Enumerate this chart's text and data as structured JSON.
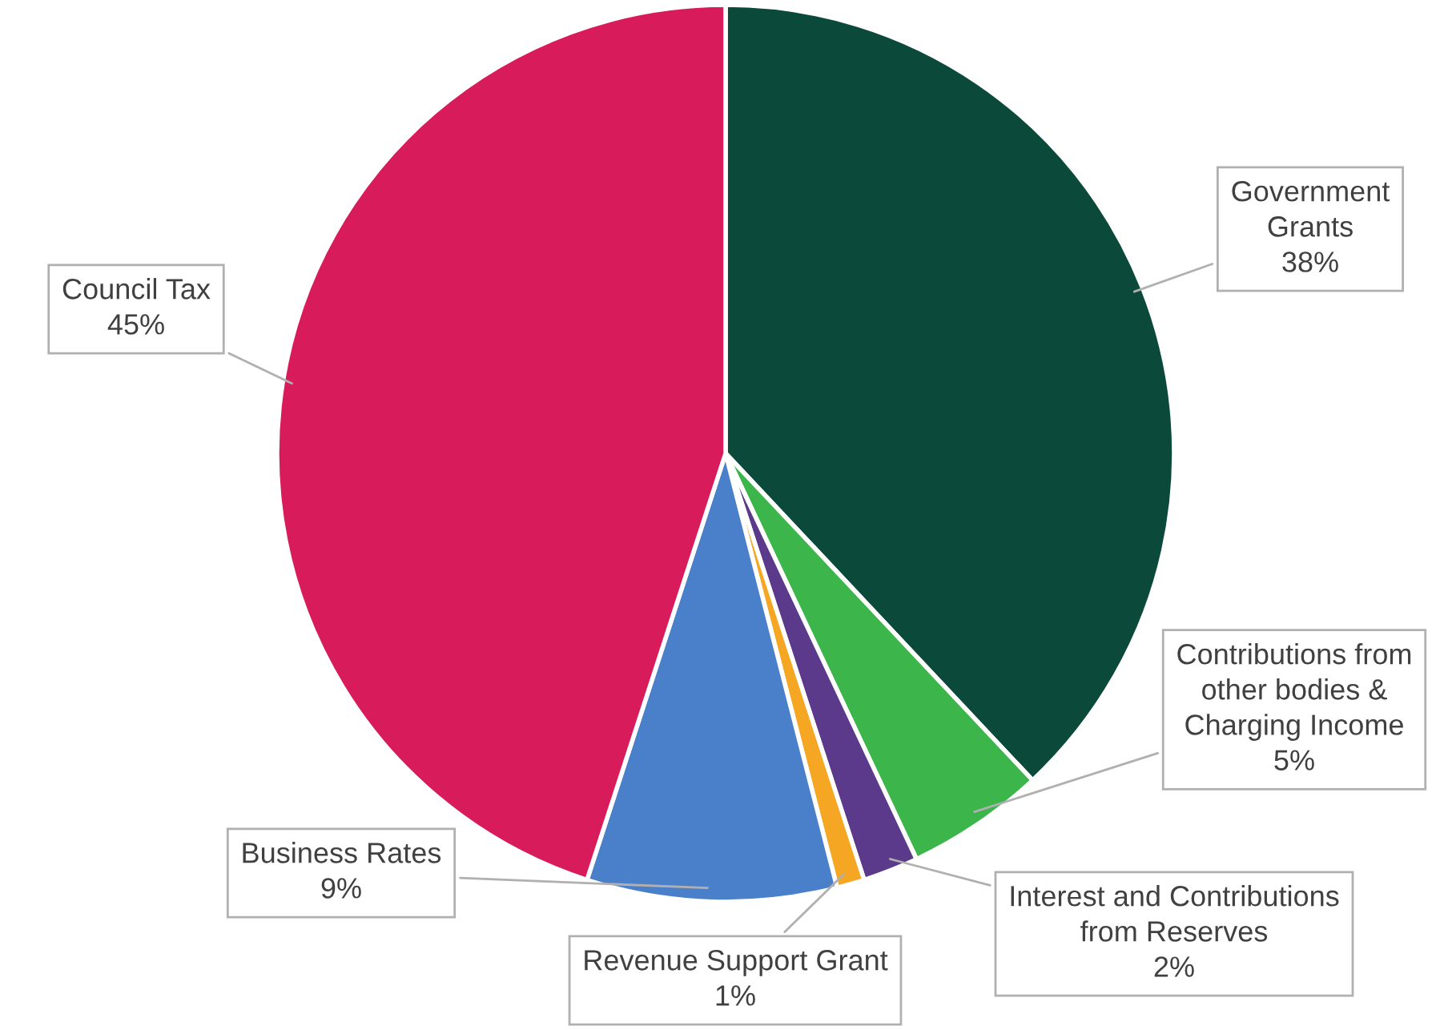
{
  "chart_data": {
    "type": "pie",
    "categories": [
      "Government\nGrants",
      "Contributions from\nother bodies &\nCharging Income",
      "Interest and Contributions\nfrom Reserves",
      "Revenue Support Grant",
      "Business Rates",
      "Council Tax"
    ],
    "values": [
      38,
      5,
      2,
      1,
      9,
      45
    ],
    "value_labels": [
      "38%",
      "5%",
      "2%",
      "1%",
      "9%",
      "45%"
    ],
    "colors": [
      "#0b4a3a",
      "#3cb54a",
      "#5b3a8c",
      "#f5a623",
      "#4a7fc9",
      "#d81b5a"
    ]
  }
}
